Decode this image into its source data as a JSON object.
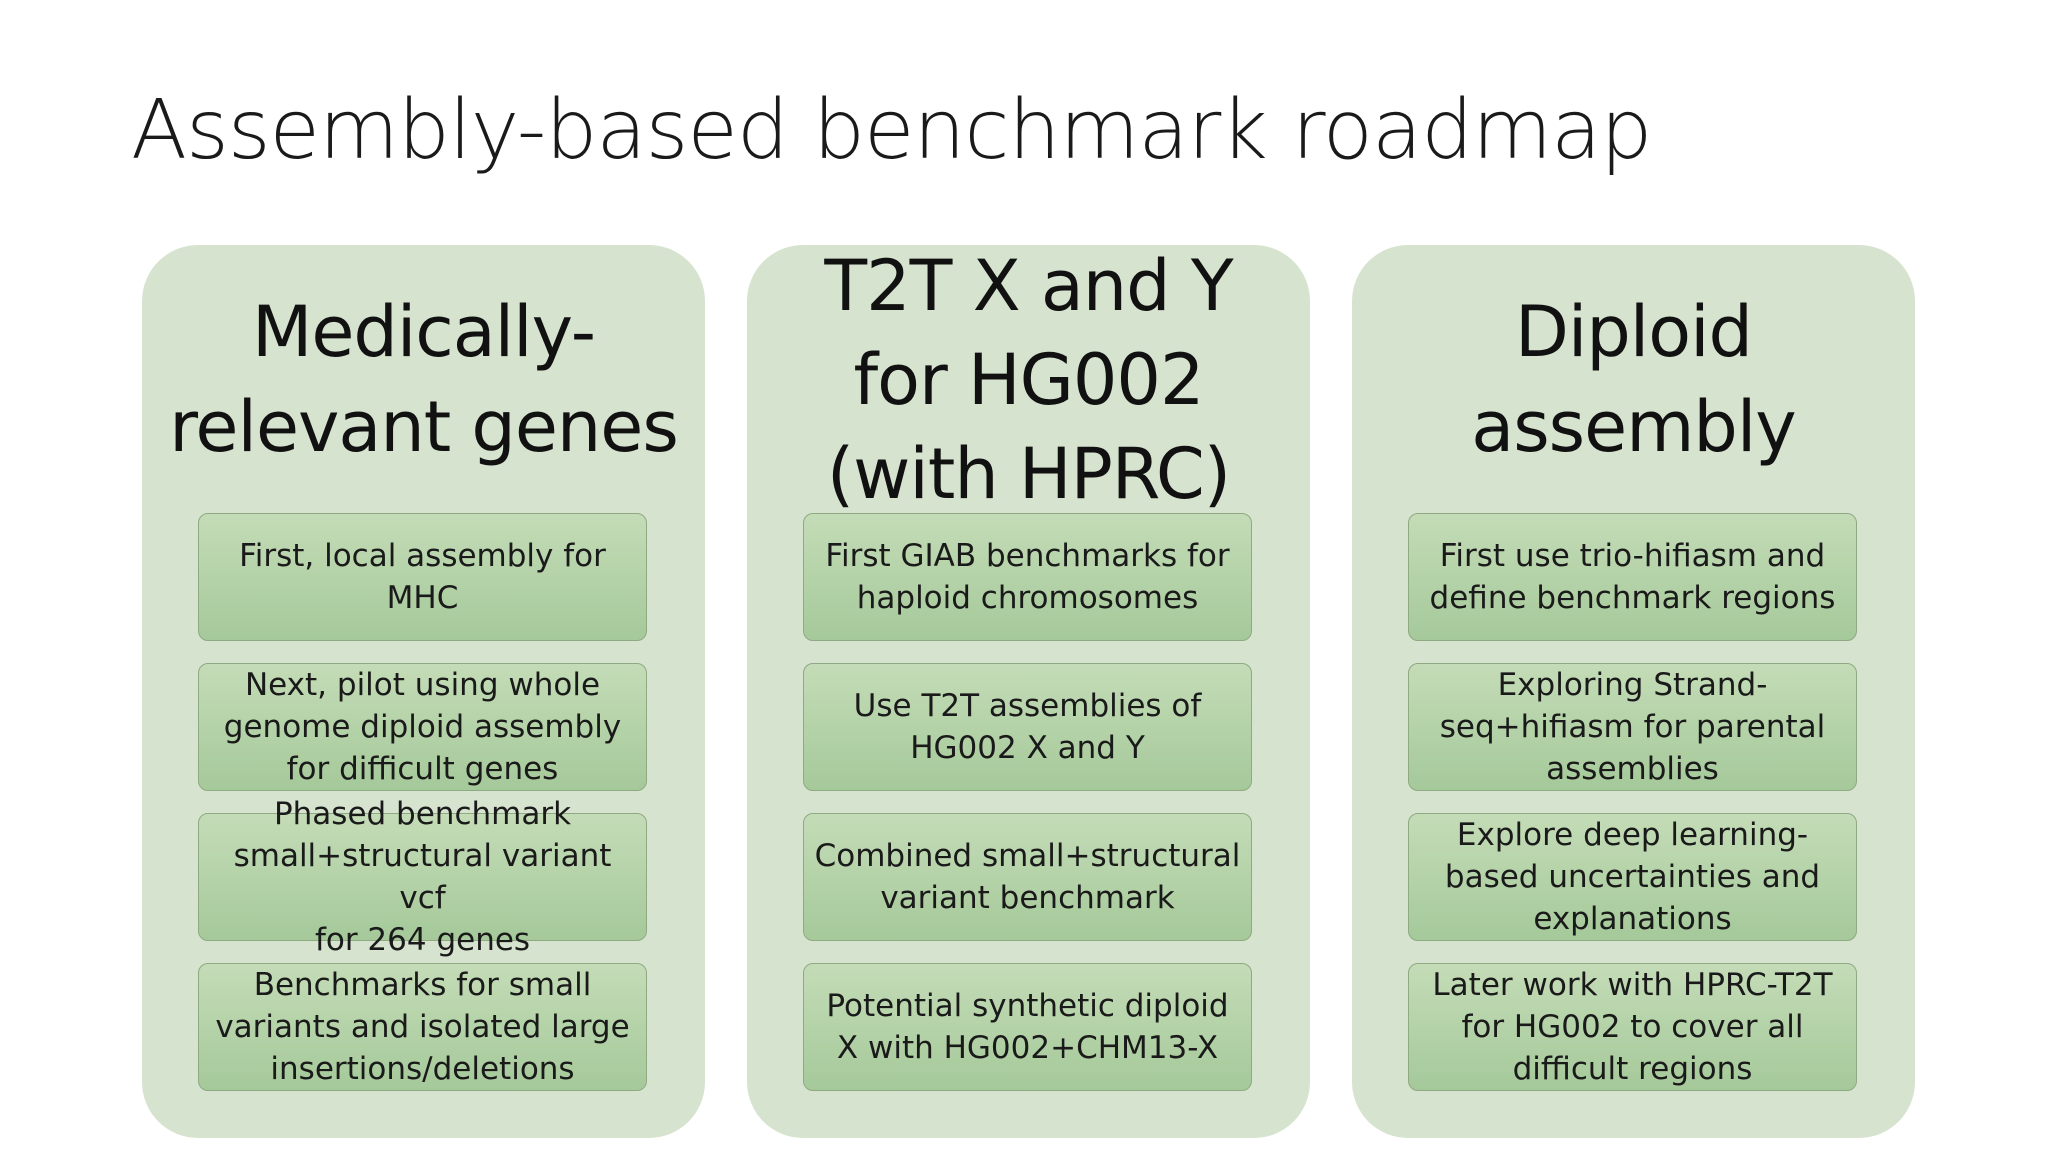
{
  "slide": {
    "title": "Assembly-based benchmark roadmap"
  },
  "columns": [
    {
      "heading_lines": [
        "Medically-",
        "relevant genes"
      ],
      "cards": [
        [
          "First, local assembly for",
          "MHC"
        ],
        [
          "Next, pilot using whole",
          "genome diploid assembly",
          "for difficult genes"
        ],
        [
          "Phased benchmark",
          "small+structural variant vcf",
          "for 264 genes"
        ],
        [
          "Benchmarks for small",
          "variants and isolated large",
          "insertions/deletions"
        ]
      ]
    },
    {
      "heading_lines": [
        "T2T X and Y",
        "for HG002",
        "(with HPRC)"
      ],
      "cards": [
        [
          "First GIAB benchmarks for",
          "haploid chromosomes"
        ],
        [
          "Use T2T assemblies of",
          "HG002 X and Y"
        ],
        [
          "Combined small+structural",
          "variant benchmark"
        ],
        [
          "Potential synthetic diploid",
          "X with HG002+CHM13-X"
        ]
      ]
    },
    {
      "heading_lines": [
        "Diploid",
        "assembly"
      ],
      "cards": [
        [
          "First use trio-hifiasm and",
          "define benchmark regions"
        ],
        [
          "Exploring Strand-",
          "seq+hifiasm for parental",
          "assemblies"
        ],
        [
          "Explore deep learning-",
          "based uncertainties and",
          "explanations"
        ],
        [
          "Later work with HPRC-T2T",
          "for HG002 to cover all",
          "difficult regions"
        ]
      ]
    }
  ],
  "colors": {
    "column_background": "#d6e3cf",
    "card_top": "#c4dcb7",
    "card_bottom": "#a5c99a",
    "card_border": "#8fa982",
    "text": "#1a1a1a"
  }
}
